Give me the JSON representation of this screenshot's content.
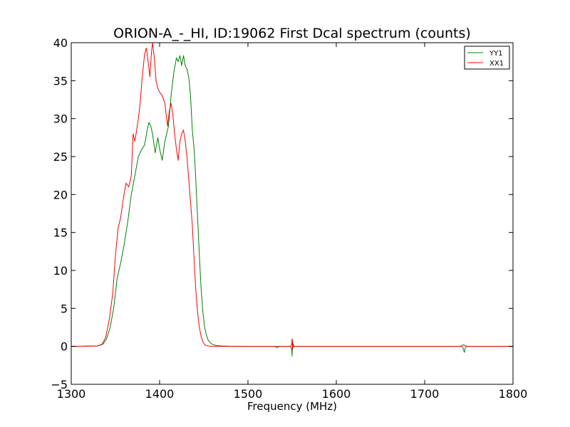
{
  "chart_data": {
    "type": "line",
    "title": "ORION-A_-_HI, ID:19062 First Dcal spectrum (counts)",
    "xlabel": "Frequency (MHz)",
    "ylabel": "",
    "xlim": [
      1300,
      1800
    ],
    "ylim": [
      -5,
      40
    ],
    "x_ticks": [
      1300,
      1400,
      1500,
      1600,
      1700,
      1800
    ],
    "x_tick_labels": [
      "1300",
      "1400",
      "1500",
      "1600",
      "1700",
      "1800"
    ],
    "y_ticks": [
      -5,
      0,
      5,
      10,
      15,
      20,
      25,
      30,
      35,
      40
    ],
    "y_tick_labels": [
      "−5",
      "0",
      "5",
      "10",
      "15",
      "20",
      "25",
      "30",
      "35",
      "40"
    ],
    "grid": false,
    "legend_position": "top-right",
    "series": [
      {
        "name": "YY1",
        "color": "#008000",
        "x": [
          1300,
          1330,
          1336,
          1340,
          1344,
          1348,
          1352,
          1356,
          1360,
          1364,
          1368,
          1372,
          1376,
          1380,
          1383,
          1386,
          1388,
          1390,
          1392,
          1395,
          1398,
          1400,
          1403,
          1406,
          1410,
          1413,
          1416,
          1419,
          1421,
          1423,
          1425,
          1427,
          1429,
          1431,
          1433,
          1435,
          1437,
          1439,
          1441,
          1443,
          1445,
          1447,
          1449,
          1451,
          1453,
          1455,
          1458,
          1461,
          1465,
          1470,
          1480,
          1500,
          1548,
          1549.5,
          1550,
          1550.5,
          1551,
          1552.5,
          1600,
          1740,
          1743,
          1745,
          1746,
          1748,
          1750,
          1800
        ],
        "y": [
          0,
          0.05,
          0.3,
          1.0,
          2.5,
          5.0,
          9.0,
          11.0,
          13.5,
          16.5,
          20.0,
          22.5,
          25.0,
          26.0,
          26.5,
          28.5,
          29.5,
          29.0,
          28.0,
          25.5,
          27.5,
          26.0,
          24.5,
          27.0,
          29.0,
          33.0,
          36.0,
          38.0,
          37.5,
          38.3,
          37.0,
          38.3,
          37.0,
          36.5,
          35.5,
          33.0,
          28.5,
          26.0,
          22.0,
          17.0,
          12.0,
          7.5,
          4.5,
          2.5,
          1.5,
          0.8,
          0.4,
          0.2,
          0.1,
          0.05,
          0.02,
          0,
          0,
          -0.3,
          -1.3,
          0.8,
          -0.2,
          0,
          0,
          0,
          -0.1,
          -0.8,
          -0.2,
          0,
          0,
          0
        ]
      },
      {
        "name": "XX1",
        "color": "#ff0000",
        "x": [
          1300,
          1330,
          1335,
          1339,
          1343,
          1347,
          1350,
          1353,
          1356,
          1359,
          1362,
          1365,
          1368,
          1370,
          1372,
          1374,
          1376,
          1378,
          1380,
          1383,
          1385,
          1387,
          1389,
          1391,
          1392,
          1394,
          1396,
          1398,
          1400,
          1403,
          1406,
          1409,
          1411,
          1413,
          1415,
          1417,
          1419,
          1421,
          1423,
          1425,
          1427,
          1429,
          1431,
          1433,
          1435,
          1437,
          1439,
          1441,
          1443,
          1445,
          1447,
          1449,
          1451,
          1453,
          1455,
          1458,
          1462,
          1466,
          1470,
          1480,
          1500,
          1530,
          1533,
          1536,
          1548,
          1549.5,
          1550,
          1550.5,
          1551,
          1552.5,
          1600,
          1740,
          1744,
          1748,
          1800
        ],
        "y": [
          0,
          0.05,
          0.3,
          1.2,
          3.5,
          7.0,
          12.0,
          15.5,
          17.0,
          19.5,
          21.5,
          21.0,
          22.5,
          28.0,
          27.0,
          28.5,
          30.0,
          32.0,
          35.0,
          38.5,
          39.3,
          37.5,
          35.5,
          39.0,
          40.0,
          38.0,
          35.0,
          34.0,
          33.5,
          33.0,
          32.0,
          29.0,
          31.0,
          32.0,
          30.5,
          28.0,
          26.0,
          24.5,
          27.0,
          28.0,
          28.5,
          27.0,
          25.0,
          22.0,
          19.0,
          16.0,
          11.5,
          7.5,
          4.5,
          2.5,
          1.3,
          0.6,
          0.2,
          0.1,
          0.05,
          0.02,
          0,
          0,
          0,
          0,
          0,
          0,
          -0.15,
          0,
          0,
          0.2,
          1.0,
          -0.4,
          0.3,
          0,
          0,
          0,
          0.2,
          0,
          0
        ]
      }
    ]
  }
}
